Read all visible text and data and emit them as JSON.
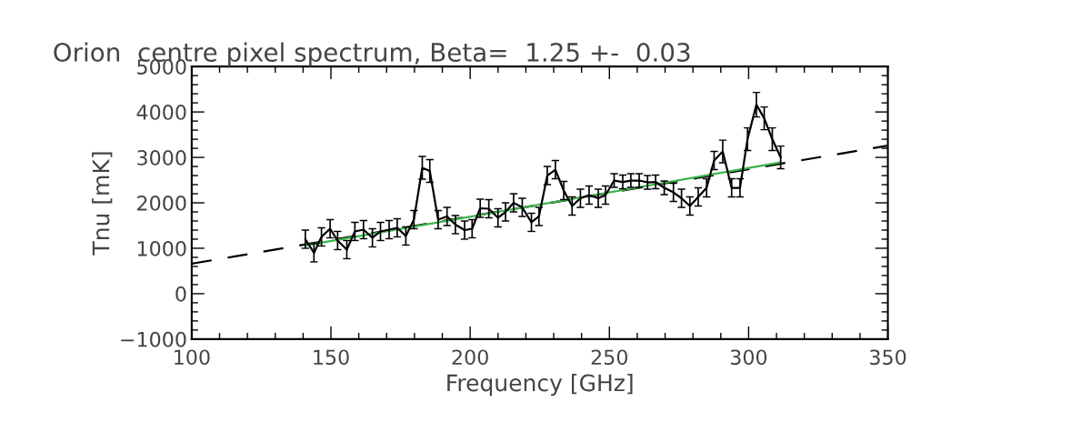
{
  "chart_data": {
    "type": "line",
    "title": "Orion  centre pixel spectrum, Beta=  1.25 +-  0.03",
    "xlabel": "Frequency [GHz]",
    "ylabel": "Tnu [mK]",
    "xlim": [
      100,
      350
    ],
    "ylim": [
      -1000,
      5000
    ],
    "xticks": [
      100,
      {
        "value": 110,
        "label": null
      },
      {
        "value": 120,
        "label": null
      },
      {
        "value": 130,
        "label": null
      },
      {
        "value": 140,
        "label": null
      },
      150,
      {
        "value": 160,
        "label": null
      },
      {
        "value": 170,
        "label": null
      },
      {
        "value": 180,
        "label": null
      },
      {
        "value": 190,
        "label": null
      },
      200,
      {
        "value": 210,
        "label": null
      },
      {
        "value": 220,
        "label": null
      },
      {
        "value": 230,
        "label": null
      },
      {
        "value": 240,
        "label": null
      },
      250,
      {
        "value": 260,
        "label": null
      },
      {
        "value": 270,
        "label": null
      },
      {
        "value": 280,
        "label": null
      },
      {
        "value": 290,
        "label": null
      },
      300,
      {
        "value": 310,
        "label": null
      },
      {
        "value": 320,
        "label": null
      },
      {
        "value": 330,
        "label": null
      },
      {
        "value": 340,
        "label": null
      },
      350
    ],
    "yticks": [
      {
        "value": -1000,
        "label": "−1000"
      },
      {
        "value": -800,
        "label": null
      },
      {
        "value": -600,
        "label": null
      },
      {
        "value": -400,
        "label": null
      },
      {
        "value": -200,
        "label": null
      },
      0,
      {
        "value": 200,
        "label": null
      },
      {
        "value": 400,
        "label": null
      },
      {
        "value": 600,
        "label": null
      },
      {
        "value": 800,
        "label": null
      },
      1000,
      {
        "value": 1200,
        "label": null
      },
      {
        "value": 1400,
        "label": null
      },
      {
        "value": 1600,
        "label": null
      },
      {
        "value": 1800,
        "label": null
      },
      2000,
      {
        "value": 2200,
        "label": null
      },
      {
        "value": 2400,
        "label": null
      },
      {
        "value": 2600,
        "label": null
      },
      {
        "value": 2800,
        "label": null
      },
      3000,
      {
        "value": 3200,
        "label": null
      },
      {
        "value": 3400,
        "label": null
      },
      {
        "value": 3600,
        "label": null
      },
      {
        "value": 3800,
        "label": null
      },
      4000,
      {
        "value": 4200,
        "label": null
      },
      {
        "value": 4400,
        "label": null
      },
      {
        "value": 4600,
        "label": null
      },
      {
        "value": 4800,
        "label": null
      },
      5000
    ],
    "grid": false,
    "series": [
      {
        "color": "#000000",
        "line_style": "dashed",
        "x": [
          100,
          350
        ],
        "values": [
          660,
          3260
        ]
      },
      {
        "color": "#3cb44b",
        "line_style": "solid",
        "x": [
          140.8,
          311.5
        ],
        "values": [
          1060,
          2890
        ]
      },
      {
        "color": "#000000",
        "line_style": "solid",
        "x": [
          140.8,
          143.9,
          146.6,
          149.7,
          152.4,
          155.7,
          158.6,
          161.7,
          164.9,
          167.8,
          170.9,
          173.8,
          176.9,
          179.8,
          182.8,
          185.5,
          188.5,
          191.7,
          194.7,
          198.0,
          200.7,
          203.6,
          206.7,
          210.0,
          212.7,
          215.6,
          218.7,
          222.0,
          224.7,
          227.7,
          230.6,
          233.6,
          236.6,
          239.6,
          242.7,
          246.0,
          248.6,
          251.7,
          254.8,
          257.7,
          260.7,
          263.7,
          266.6,
          269.7,
          273.0,
          275.9,
          278.9,
          281.9,
          284.9,
          287.6,
          290.7,
          293.9,
          296.9,
          299.6,
          302.8,
          305.6,
          308.5,
          311.5
        ],
        "values": [
          1200,
          900,
          1250,
          1430,
          1170,
          970,
          1370,
          1410,
          1230,
          1370,
          1410,
          1450,
          1270,
          1630,
          2770,
          2700,
          1630,
          1700,
          1520,
          1400,
          1430,
          1880,
          1870,
          1670,
          1800,
          2000,
          1900,
          1570,
          1700,
          2600,
          2730,
          2270,
          1930,
          2100,
          2170,
          2100,
          2170,
          2490,
          2460,
          2490,
          2490,
          2450,
          2460,
          2330,
          2230,
          2100,
          1930,
          2130,
          2330,
          2930,
          3130,
          2330,
          2330,
          3400,
          4160,
          3860,
          3400,
          3000
        ],
        "errors": [
          200,
          200,
          200,
          200,
          200,
          200,
          200,
          200,
          200,
          200,
          200,
          200,
          200,
          200,
          250,
          250,
          200,
          200,
          200,
          200,
          200,
          200,
          200,
          200,
          200,
          200,
          200,
          200,
          200,
          200,
          200,
          200,
          200,
          200,
          200,
          200,
          200,
          150,
          150,
          150,
          150,
          150,
          150,
          150,
          200,
          200,
          200,
          200,
          200,
          200,
          250,
          200,
          200,
          250,
          270,
          250,
          250,
          250
        ]
      }
    ]
  }
}
